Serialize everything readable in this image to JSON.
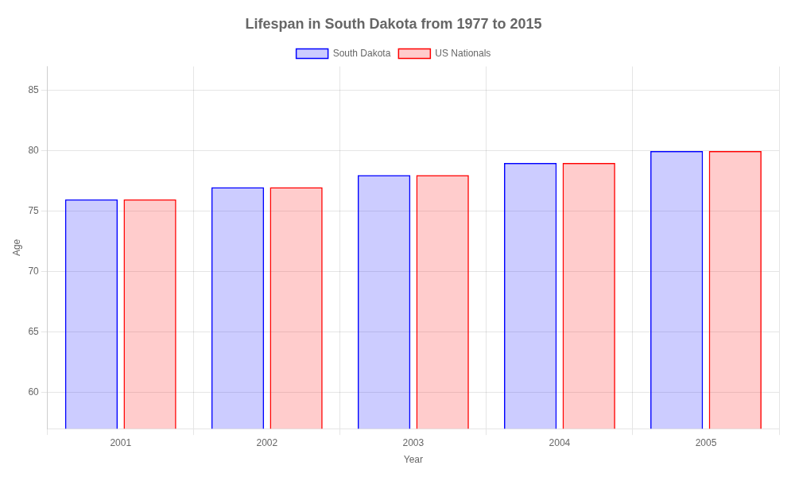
{
  "chart_data": {
    "type": "bar",
    "title": "Lifespan in South Dakota from 1977 to 2015",
    "x_label": "Year",
    "y_label": "Age",
    "categories": [
      "2001",
      "2002",
      "2003",
      "2004",
      "2005"
    ],
    "series": [
      {
        "name": "South Dakota",
        "color": "#0000ff",
        "values": [
          76,
          77,
          78,
          79,
          80
        ]
      },
      {
        "name": "US Nationals",
        "color": "#ff0000",
        "values": [
          76,
          77,
          78,
          79,
          80
        ]
      }
    ],
    "ylim": [
      57,
      87
    ],
    "yticks": [
      60,
      65,
      70,
      75,
      80,
      85
    ],
    "grid": true,
    "legend": "top"
  }
}
